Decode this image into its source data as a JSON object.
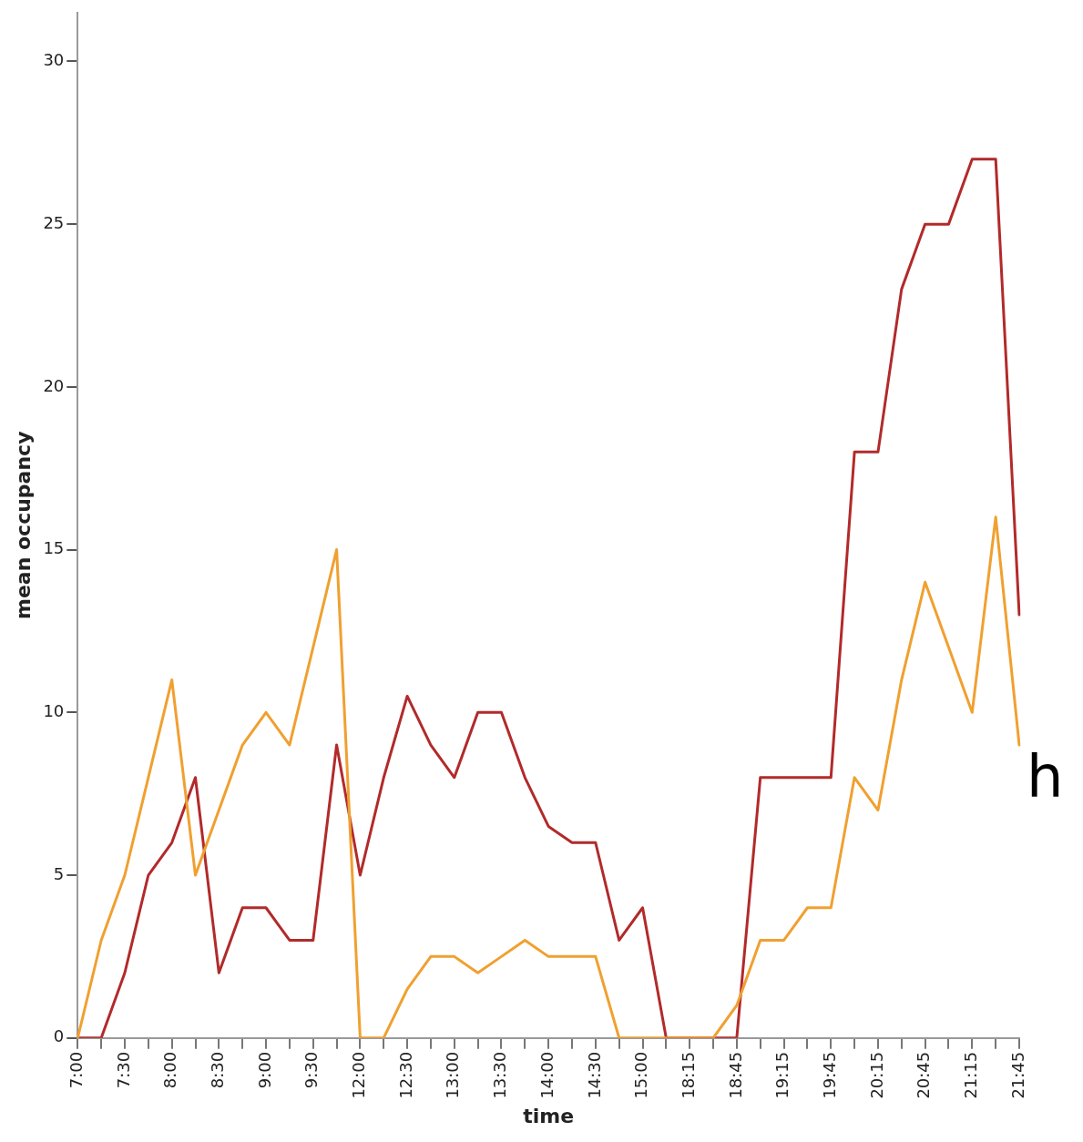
{
  "chart_data": {
    "type": "line",
    "xlabel": "time",
    "ylabel": "mean occupancy",
    "categories": [
      "7:00",
      null,
      "7:30",
      null,
      "8:00",
      null,
      "8:30",
      null,
      "9:00",
      null,
      "9:30",
      null,
      "12:00",
      null,
      "12:30",
      null,
      "13:00",
      null,
      "13:30",
      null,
      "14:00",
      null,
      "14:30",
      null,
      "15:00",
      null,
      "18:15",
      null,
      "18:45",
      null,
      "19:15",
      null,
      "19:45",
      null,
      "20:15",
      null,
      "20:45",
      null,
      "21:15",
      null,
      "21:45"
    ],
    "series": [
      {
        "color": "#f0a030",
        "values": [
          0,
          3,
          5,
          8,
          11,
          5,
          7,
          9,
          10,
          9,
          12,
          15,
          0,
          0,
          1.5,
          2.5,
          2.5,
          2,
          2.5,
          3,
          2.5,
          2.5,
          2.5,
          0,
          0,
          0,
          0,
          0,
          1,
          3,
          3,
          4,
          4,
          8,
          7,
          11,
          14,
          12,
          10,
          16,
          9
        ]
      },
      {
        "color": "#b22a2a",
        "values": [
          0,
          0,
          2,
          5,
          6,
          8,
          2,
          4,
          4,
          3,
          3,
          9,
          5,
          8,
          10.5,
          9,
          8,
          10,
          10,
          8,
          6.5,
          6,
          6,
          3,
          4,
          0,
          0,
          0,
          0,
          8,
          8,
          8,
          8,
          18,
          18,
          23,
          25,
          25,
          27,
          27,
          13
        ]
      }
    ],
    "ylim": [
      0,
      31.5
    ],
    "yticks": [
      0,
      5,
      10,
      15,
      20,
      25,
      30
    ],
    "grid": false,
    "legend": false,
    "marker": "none",
    "line_style": "solid",
    "annotations": [
      "h"
    ]
  }
}
